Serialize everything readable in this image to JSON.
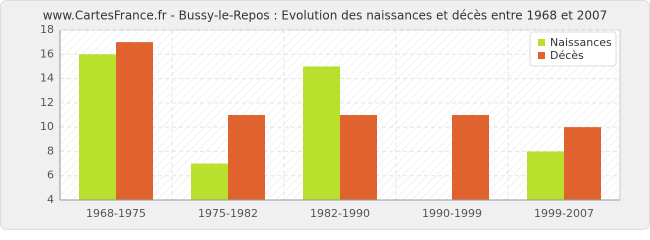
{
  "chart_data": {
    "type": "bar",
    "title": "www.CartesFrance.fr - Bussy-le-Repos : Evolution des naissances et décès entre 1968 et 2007",
    "categories": [
      "1968-1975",
      "1975-1982",
      "1982-1990",
      "1990-1999",
      "1999-2007"
    ],
    "series": [
      {
        "name": "Naissances",
        "color": "#b8e02c",
        "values": [
          16,
          7,
          15,
          4,
          8
        ]
      },
      {
        "name": "Décès",
        "color": "#e0622e",
        "values": [
          17,
          11,
          11,
          11,
          10
        ]
      }
    ],
    "ylim": [
      4,
      18
    ],
    "yticks": [
      4,
      6,
      8,
      10,
      12,
      14,
      16,
      18
    ],
    "grid": true,
    "legend": "top-right"
  }
}
